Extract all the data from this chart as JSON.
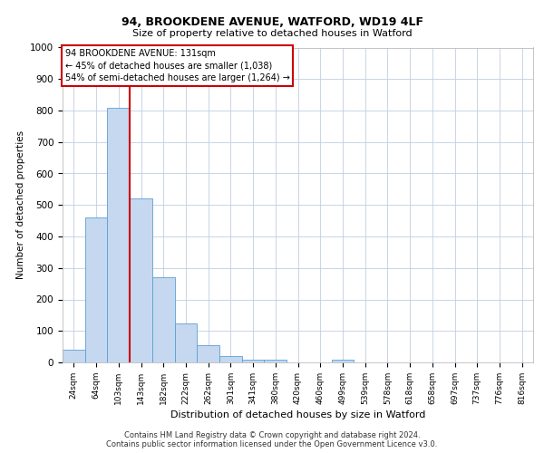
{
  "title1": "94, BROOKDENE AVENUE, WATFORD, WD19 4LF",
  "title2": "Size of property relative to detached houses in Watford",
  "xlabel": "Distribution of detached houses by size in Watford",
  "ylabel": "Number of detached properties",
  "footer1": "Contains HM Land Registry data © Crown copyright and database right 2024.",
  "footer2": "Contains public sector information licensed under the Open Government Licence v3.0.",
  "categories": [
    "24sqm",
    "64sqm",
    "103sqm",
    "143sqm",
    "182sqm",
    "222sqm",
    "262sqm",
    "301sqm",
    "341sqm",
    "380sqm",
    "420sqm",
    "460sqm",
    "499sqm",
    "539sqm",
    "578sqm",
    "618sqm",
    "658sqm",
    "697sqm",
    "737sqm",
    "776sqm",
    "816sqm"
  ],
  "values": [
    40,
    460,
    810,
    520,
    270,
    125,
    55,
    20,
    10,
    10,
    0,
    0,
    10,
    0,
    0,
    0,
    0,
    0,
    0,
    0,
    0
  ],
  "bar_color": "#c5d8f0",
  "bar_edge_color": "#5a9fd4",
  "vline_x": 2.5,
  "vline_color": "#cc0000",
  "ylim": [
    0,
    1000
  ],
  "yticks": [
    0,
    100,
    200,
    300,
    400,
    500,
    600,
    700,
    800,
    900,
    1000
  ],
  "annotation_text": "94 BROOKDENE AVENUE: 131sqm\n← 45% of detached houses are smaller (1,038)\n54% of semi-detached houses are larger (1,264) →",
  "annotation_box_color": "#ffffff",
  "annotation_box_edge": "#cc0000",
  "bg_color": "#ffffff",
  "grid_color": "#c0cfe0"
}
